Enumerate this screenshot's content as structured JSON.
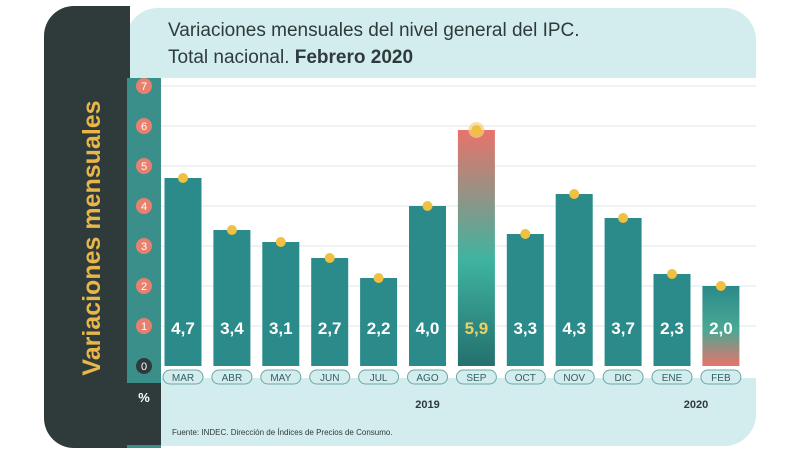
{
  "side_title": "Variaciones mensuales",
  "title_line1": "Variaciones mensuales del nivel general del IPC.",
  "title_line2_regular": "Total nacional.",
  "title_line2_bold": "Febrero 2020",
  "y_unit": "%",
  "source": "Fuente: INDEC. Dirección de Índices de Precios de Consumo.",
  "year_labels": [
    {
      "label": "2019",
      "under": "AGO"
    },
    {
      "label": "2020",
      "under": "ENE"
    }
  ],
  "colors": {
    "dark_panel": "#2f3b3b",
    "title_accent": "#e9b64a",
    "card": "#d3ecee",
    "teal_bar": "#2b8a8a",
    "highlight_label": "#f0d060",
    "tick_circle": "#e8806f",
    "marker": "#f0c040"
  },
  "chart_data": {
    "type": "bar",
    "categories": [
      "MAR",
      "ABR",
      "MAY",
      "JUN",
      "JUL",
      "AGO",
      "SEP",
      "OCT",
      "NOV",
      "DIC",
      "ENE",
      "FEB"
    ],
    "values": [
      4.7,
      3.4,
      3.1,
      2.7,
      2.2,
      4.0,
      5.9,
      3.3,
      4.3,
      3.7,
      2.3,
      2.0
    ],
    "value_labels": [
      "4,7",
      "3,4",
      "3,1",
      "2,7",
      "2,2",
      "4,0",
      "5,9",
      "3,3",
      "4,3",
      "3,7",
      "2,3",
      "2,0"
    ],
    "highlighted": [
      "SEP",
      "FEB"
    ],
    "y_ticks": [
      "0",
      "1",
      "2",
      "3",
      "4",
      "5",
      "6",
      "7"
    ],
    "ylim": [
      0,
      7
    ],
    "grid": true,
    "title": "Variaciones mensuales del nivel general del IPC. Total nacional. Febrero 2020",
    "ylabel": "Variaciones mensuales"
  }
}
